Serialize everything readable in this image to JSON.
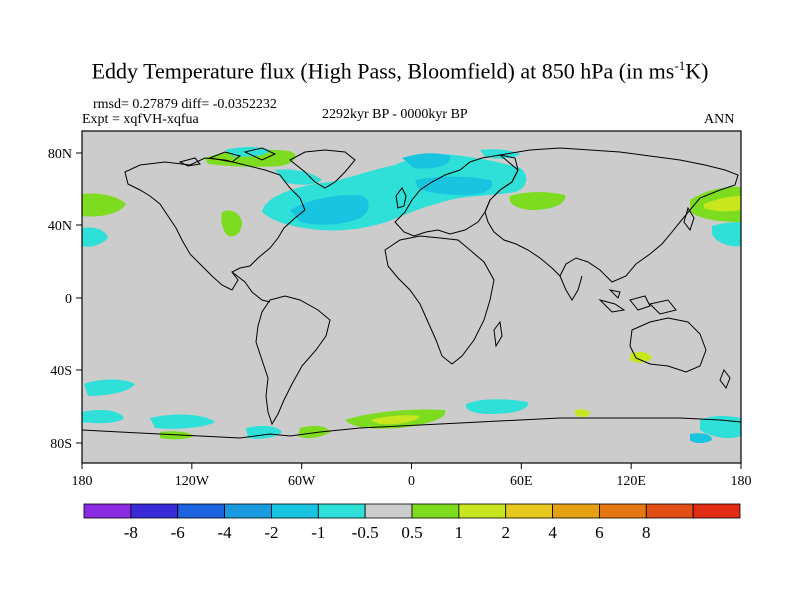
{
  "title": {
    "main": "Eddy Temperature flux (High Pass, Bloomfield) at 850 hPa (in ms",
    "sup": "-1",
    "end": "K)"
  },
  "stats": {
    "rmsd_diff": "rmsd= 0.27879 diff= -0.0352232",
    "expt": "Expt = xqfVH-xqfua",
    "period": "2292kyr BP - 0000kyr BP",
    "season": "ANN"
  },
  "map": {
    "lat_labels": [
      "80N",
      "40N",
      "0",
      "40S",
      "80S"
    ],
    "lon_labels": [
      "180",
      "120W",
      "60W",
      "0",
      "60E",
      "120E",
      "180"
    ],
    "background_color": "#cccccc",
    "coastline_color": "#000000"
  },
  "colorbar": {
    "colors": [
      "#8a2be2",
      "#3a2bd8",
      "#1c64e0",
      "#1a9be0",
      "#19c4e0",
      "#2ee0d8",
      "#cccccc",
      "#7ddc1f",
      "#c8e61e",
      "#e6c81e",
      "#e6a014",
      "#e67814",
      "#e05014",
      "#e02d14"
    ],
    "labels": [
      "-8",
      "-6",
      "-4",
      "-2",
      "-1",
      "-0.5",
      "0.5",
      "1",
      "2",
      "4",
      "6",
      "8"
    ]
  }
}
